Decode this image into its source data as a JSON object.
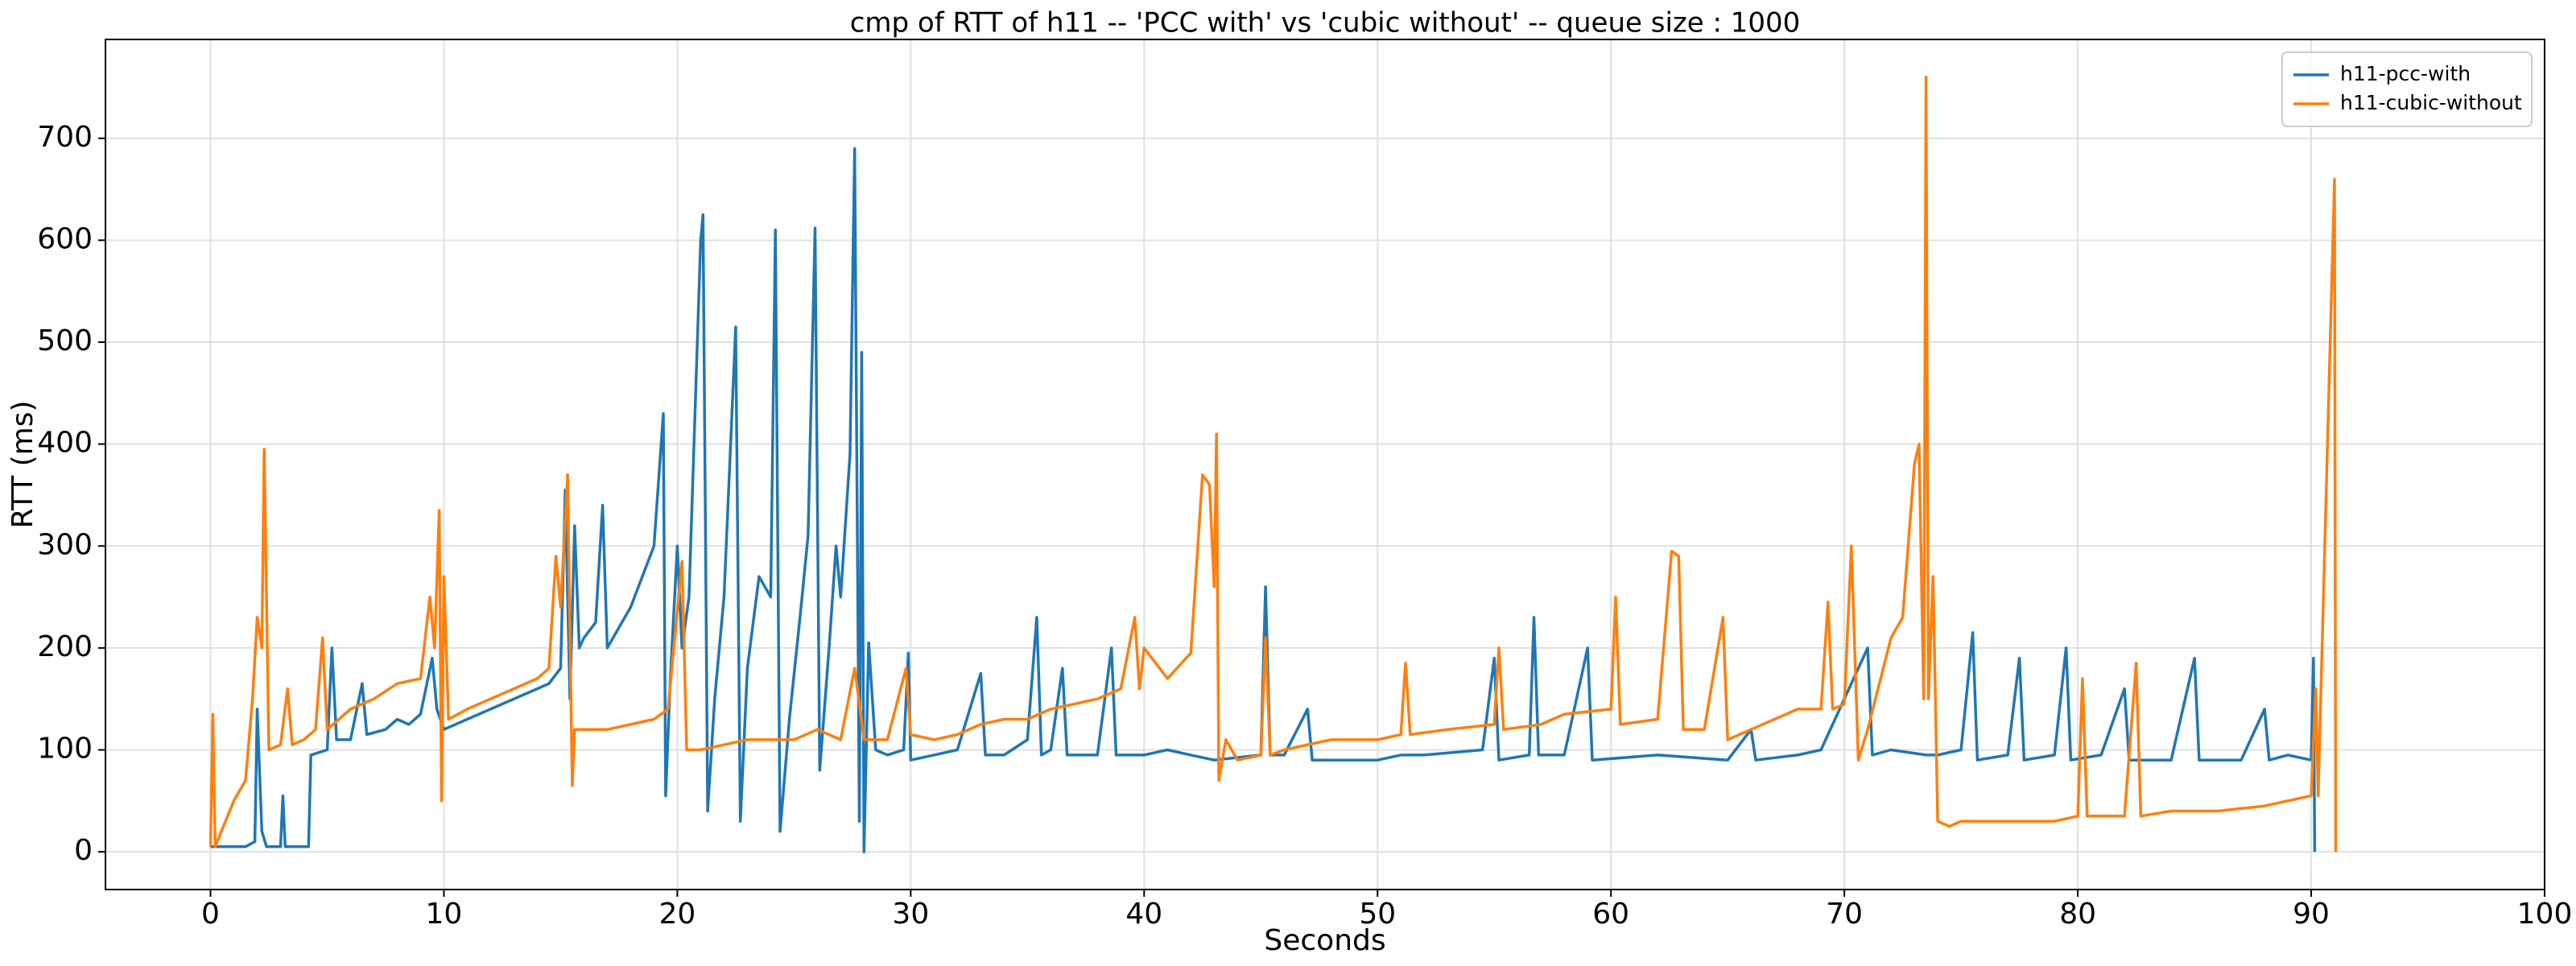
{
  "chart_data": {
    "type": "line",
    "title": "cmp of RTT of h11 -- 'PCC with' vs 'cubic without' -- queue size : 1000",
    "x_label": "Seconds",
    "y_label": "RTT (ms)",
    "xlim": [
      -4.5,
      100
    ],
    "ylim": [
      -37,
      797
    ],
    "xticks": [
      0,
      10,
      20,
      30,
      40,
      50,
      60,
      70,
      80,
      90,
      100
    ],
    "yticks": [
      0,
      100,
      200,
      300,
      400,
      500,
      600,
      700
    ],
    "grid": true,
    "legend": "upper right",
    "series": [
      {
        "name": "h11-pcc-with",
        "color": "#1f77b4",
        "x": [
          0,
          0.1,
          1.5,
          1.9,
          2.0,
          2.2,
          2.4,
          3.0,
          3.1,
          3.2,
          4.2,
          4.3,
          5.0,
          5.2,
          5.4,
          6,
          6.5,
          6.7,
          7.5,
          8,
          8.5,
          9,
          9.5,
          9.7,
          10,
          11,
          12,
          13,
          14,
          14.5,
          15,
          15.2,
          15.4,
          15.6,
          15.8,
          16,
          16.5,
          16.8,
          17,
          18,
          19,
          19.4,
          19.5,
          19.7,
          20,
          20.2,
          20.5,
          21,
          21.1,
          21.3,
          21.6,
          22,
          22.5,
          22.7,
          23,
          23.5,
          24,
          24.2,
          24.4,
          24.8,
          25.3,
          25.6,
          25.9,
          26.1,
          26.5,
          26.8,
          27,
          27.4,
          27.6,
          27.8,
          27.9,
          28.0,
          28.2,
          28.5,
          29,
          29.7,
          29.9,
          30,
          31,
          32,
          33,
          33.2,
          34,
          35,
          35.4,
          35.6,
          36,
          36.5,
          36.7,
          38,
          38.6,
          38.8,
          40,
          41,
          42,
          43,
          45,
          45.2,
          45.4,
          46,
          47,
          47.2,
          50,
          51,
          52,
          54.5,
          55,
          55.2,
          56.5,
          56.7,
          56.9,
          58,
          59,
          59.2,
          62,
          65,
          66,
          66.2,
          68,
          69,
          71,
          71.2,
          72,
          73.5,
          74,
          75,
          75.5,
          75.7,
          77,
          77.5,
          77.7,
          79,
          79.5,
          79.7,
          81,
          82,
          82.2,
          84,
          85,
          85.2,
          87,
          88,
          88.2,
          89,
          90,
          90.1,
          90.15
        ],
        "values": [
          5,
          5,
          5,
          10,
          140,
          20,
          5,
          5,
          55,
          5,
          5,
          95,
          100,
          200,
          110,
          110,
          165,
          115,
          120,
          130,
          125,
          135,
          190,
          140,
          120,
          130,
          140,
          150,
          160,
          165,
          180,
          355,
          150,
          320,
          200,
          210,
          225,
          340,
          200,
          240,
          300,
          430,
          55,
          170,
          300,
          200,
          250,
          600,
          625,
          40,
          150,
          250,
          515,
          30,
          180,
          270,
          250,
          610,
          20,
          130,
          240,
          310,
          612,
          80,
          200,
          300,
          250,
          390,
          690,
          30,
          490,
          0,
          205,
          100,
          95,
          100,
          195,
          90,
          95,
          100,
          175,
          95,
          95,
          110,
          230,
          95,
          100,
          180,
          95,
          95,
          200,
          95,
          95,
          100,
          95,
          90,
          95,
          260,
          95,
          95,
          140,
          90,
          90,
          95,
          95,
          100,
          190,
          90,
          95,
          230,
          95,
          95,
          200,
          90,
          95,
          90,
          120,
          90,
          95,
          100,
          200,
          95,
          100,
          95,
          95,
          100,
          215,
          90,
          95,
          190,
          90,
          95,
          200,
          90,
          95,
          160,
          90,
          90,
          190,
          90,
          90,
          140,
          90,
          95,
          90,
          190,
          0
        ]
      },
      {
        "name": "h11-cubic-without",
        "color": "#ff7f0e",
        "x": [
          0,
          0.1,
          0.2,
          1,
          1.5,
          1.8,
          2.0,
          2.2,
          2.3,
          2.5,
          3,
          3.3,
          3.5,
          4,
          4.5,
          4.8,
          5,
          6,
          7,
          8,
          9,
          9.4,
          9.6,
          9.8,
          9.9,
          10,
          10.2,
          11,
          12,
          13,
          14,
          14.5,
          14.8,
          15,
          15.3,
          15.5,
          15.6,
          17,
          19,
          19.6,
          20.2,
          20.4,
          21,
          22,
          23,
          25,
          26,
          27,
          27.6,
          28,
          29,
          29.8,
          30,
          31,
          32,
          33,
          34,
          35,
          36,
          37,
          38,
          39,
          39.6,
          39.8,
          40,
          41,
          42,
          42.5,
          42.8,
          43,
          43.1,
          43.2,
          43.5,
          44,
          45,
          45.2,
          45.4,
          46,
          48,
          50,
          51,
          51.2,
          51.4,
          53,
          55,
          55.2,
          55.4,
          57,
          58,
          60,
          60.2,
          60.4,
          62,
          62.6,
          62.9,
          63.1,
          64,
          64.8,
          65,
          66,
          68,
          69,
          69.3,
          69.5,
          70,
          70.3,
          70.6,
          71,
          72,
          72.5,
          73,
          73.2,
          73.4,
          73.5,
          73.6,
          73.8,
          74,
          74.5,
          75,
          77,
          79,
          80,
          80.2,
          80.4,
          82,
          82.5,
          82.7,
          84,
          86,
          88,
          89,
          90,
          90.2,
          90.3,
          91,
          91.05
        ],
        "values": [
          5,
          135,
          5,
          50,
          70,
          150,
          230,
          200,
          395,
          100,
          105,
          160,
          105,
          110,
          120,
          210,
          120,
          140,
          150,
          165,
          170,
          250,
          200,
          335,
          50,
          270,
          130,
          140,
          150,
          160,
          170,
          180,
          290,
          240,
          370,
          65,
          120,
          120,
          130,
          140,
          285,
          100,
          100,
          105,
          110,
          110,
          120,
          110,
          180,
          110,
          110,
          180,
          115,
          110,
          115,
          125,
          130,
          130,
          140,
          145,
          150,
          160,
          230,
          160,
          200,
          170,
          195,
          370,
          360,
          260,
          410,
          70,
          110,
          90,
          95,
          210,
          95,
          100,
          110,
          110,
          115,
          185,
          115,
          120,
          125,
          200,
          120,
          125,
          135,
          140,
          250,
          125,
          130,
          295,
          290,
          120,
          120,
          230,
          110,
          120,
          140,
          140,
          245,
          140,
          145,
          300,
          90,
          120,
          210,
          230,
          380,
          400,
          150,
          760,
          150,
          270,
          30,
          25,
          30,
          30,
          30,
          35,
          170,
          35,
          35,
          185,
          35,
          40,
          40,
          45,
          50,
          55,
          160,
          55,
          660,
          0
        ]
      }
    ]
  }
}
